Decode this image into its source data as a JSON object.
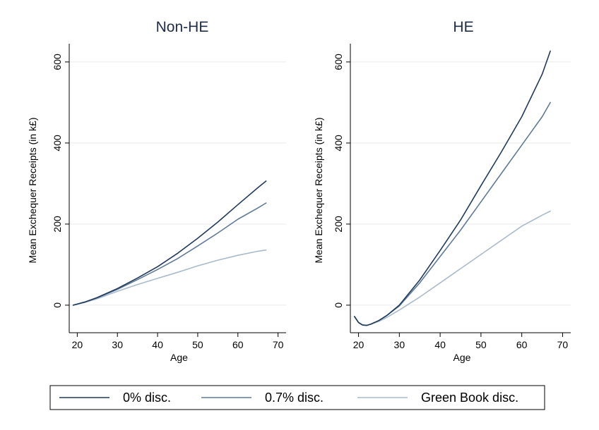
{
  "chart_data": {
    "type": "line",
    "legend": {
      "position": "bottom",
      "entries": [
        {
          "label": "0% disc.",
          "color": "#1f3a5c"
        },
        {
          "label": "0.7% disc.",
          "color": "#5f7a96"
        },
        {
          "label": "Green Book disc.",
          "color": "#a9bacb"
        }
      ]
    },
    "panels": [
      {
        "title": "Non-HE",
        "xlabel": "Age",
        "ylabel": "Mean Exchequer Receipts (in k£)",
        "xlim": [
          18,
          72
        ],
        "ylim": [
          -68,
          645
        ],
        "xticks": [
          20,
          30,
          40,
          50,
          60,
          70
        ],
        "yticks": [
          0,
          200,
          400,
          600
        ],
        "grid": true,
        "series": [
          {
            "name": "0% disc.",
            "color": "#1f3a5c",
            "x": [
              19,
              22,
              25,
              30,
              35,
              40,
              45,
              50,
              55,
              60,
              65,
              67
            ],
            "y": [
              0,
              8,
              19,
              41,
              67,
              95,
              128,
              165,
              205,
              248,
              290,
              306
            ]
          },
          {
            "name": "0.7% disc.",
            "color": "#5f7a96",
            "x": [
              19,
              22,
              25,
              30,
              35,
              40,
              45,
              50,
              55,
              60,
              65,
              67
            ],
            "y": [
              0,
              8,
              18,
              39,
              63,
              88,
              115,
              146,
              178,
              212,
              240,
              252
            ]
          },
          {
            "name": "Green Book disc.",
            "color": "#a9bacb",
            "x": [
              19,
              22,
              25,
              30,
              35,
              40,
              45,
              50,
              55,
              60,
              65,
              67
            ],
            "y": [
              0,
              7,
              16,
              34,
              51,
              66,
              81,
              97,
              111,
              123,
              133,
              136
            ]
          }
        ]
      },
      {
        "title": "HE",
        "xlabel": "Age",
        "ylabel": "Mean Exchequer Receipts (in k£)",
        "xlim": [
          18,
          72
        ],
        "ylim": [
          -68,
          645
        ],
        "xticks": [
          20,
          30,
          40,
          50,
          60,
          70
        ],
        "yticks": [
          0,
          200,
          400,
          600
        ],
        "grid": true,
        "series": [
          {
            "name": "0% disc.",
            "color": "#1f3a5c",
            "x": [
              19,
              20,
              21,
              22,
              23,
              25,
              27,
              30,
              35,
              40,
              45,
              50,
              55,
              60,
              65,
              67
            ],
            "y": [
              -28,
              -43,
              -49,
              -50,
              -47,
              -38,
              -25,
              0,
              62,
              135,
              210,
              295,
              378,
              465,
              570,
              627
            ]
          },
          {
            "name": "0.7% disc.",
            "color": "#5f7a96",
            "x": [
              19,
              20,
              21,
              22,
              23,
              25,
              27,
              30,
              35,
              40,
              45,
              50,
              55,
              60,
              65,
              67
            ],
            "y": [
              -28,
              -43,
              -49,
              -50,
              -47,
              -38,
              -25,
              -2,
              55,
              120,
              185,
              255,
              325,
              395,
              465,
              500
            ]
          },
          {
            "name": "Green Book disc.",
            "color": "#a9bacb",
            "x": [
              19,
              20,
              21,
              22,
              23,
              25,
              27,
              30,
              35,
              40,
              45,
              50,
              55,
              60,
              65,
              67
            ],
            "y": [
              -28,
              -43,
              -49,
              -50,
              -47,
              -40,
              -30,
              -12,
              20,
              55,
              90,
              125,
              160,
              195,
              222,
              232
            ]
          }
        ]
      }
    ]
  }
}
